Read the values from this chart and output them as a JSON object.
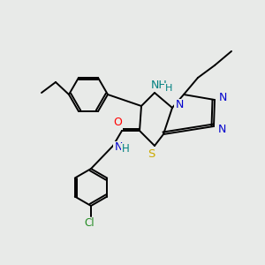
{
  "background_color": "#e8eae8",
  "bond_color": "#000000",
  "atom_colors": {
    "N": "#0000cd",
    "NH": "#008080",
    "S": "#ccaa00",
    "O": "#ff0000",
    "Cl": "#228b22",
    "H": "#008080"
  },
  "figsize": [
    3.0,
    3.0
  ],
  "dpi": 100,
  "lw": 1.4,
  "fs": 8.5
}
